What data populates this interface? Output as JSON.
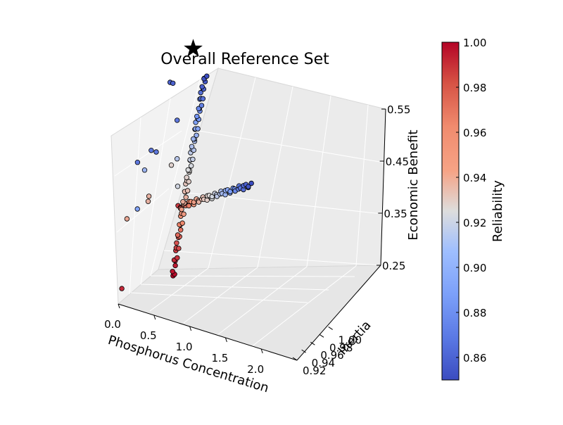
{
  "chart_data": {
    "type": "scatter",
    "projection": "3d",
    "title": "Overall Reference Set",
    "x_axis": {
      "label": "Phosphorus Concentration",
      "ticks": [
        "0.0",
        "0.5",
        "1.0",
        "1.5",
        "2.0"
      ],
      "range": [
        0,
        2.5
      ]
    },
    "y_axis": {
      "label": "Inertia",
      "ticks": [
        "0.92",
        "0.94",
        "0.96",
        "0.98",
        "1.00"
      ],
      "range": [
        0.92,
        1.01
      ]
    },
    "z_axis": {
      "label": "Economic Benefit",
      "ticks": [
        "0.25",
        "0.35",
        "0.45",
        "0.55"
      ],
      "range": [
        0.25,
        0.55
      ]
    },
    "colorbar": {
      "label": "Reliability",
      "range": [
        0.85,
        1.0
      ],
      "ticks": [
        "0.86",
        "0.88",
        "0.90",
        "0.92",
        "0.94",
        "0.96",
        "0.98",
        "1.00"
      ],
      "colormap": "coolwarm",
      "low_color": "#3b4cc0",
      "mid_color": "#dddddd",
      "high_color": "#b40426"
    },
    "marker": {
      "shape": "star",
      "color": "#000000"
    },
    "grid": true,
    "points": [
      [
        0.05,
        0.92,
        0.28,
        0.99
      ],
      [
        0.02,
        0.96,
        0.48,
        0.87
      ],
      [
        0.06,
        0.93,
        0.4,
        0.95
      ],
      [
        0.05,
        0.955,
        0.4,
        0.89
      ],
      [
        0.12,
        0.96,
        0.47,
        0.9
      ],
      [
        0.2,
        0.955,
        0.42,
        0.945
      ],
      [
        0.18,
        0.96,
        0.425,
        0.945
      ],
      [
        0.15,
        0.97,
        0.5,
        0.87
      ],
      [
        0.22,
        0.97,
        0.5,
        0.87
      ],
      [
        0.32,
        0.985,
        0.62,
        0.86
      ],
      [
        0.36,
        0.985,
        0.62,
        0.86
      ],
      [
        0.45,
        0.98,
        0.56,
        0.87
      ],
      [
        0.45,
        0.98,
        0.49,
        0.91
      ],
      [
        0.4,
        0.975,
        0.48,
        0.93
      ],
      [
        0.52,
        0.97,
        0.45,
        0.92
      ]
    ],
    "curve_a": {
      "x_range": [
        0.58,
        0.72
      ],
      "y_range": [
        0.95,
        1.0
      ],
      "z_range": [
        0.3,
        0.64
      ],
      "count": 70,
      "reliability_range": [
        1.0,
        0.85
      ]
    },
    "curve_b": {
      "x_range": [
        0.65,
        1.45
      ],
      "y_range": [
        0.95,
        0.985
      ],
      "z_range": [
        0.43,
        0.48
      ],
      "count": 45,
      "reliability_range": [
        0.985,
        0.85
      ]
    },
    "star_point": [
      0.55,
      1.0,
      0.68
    ]
  }
}
